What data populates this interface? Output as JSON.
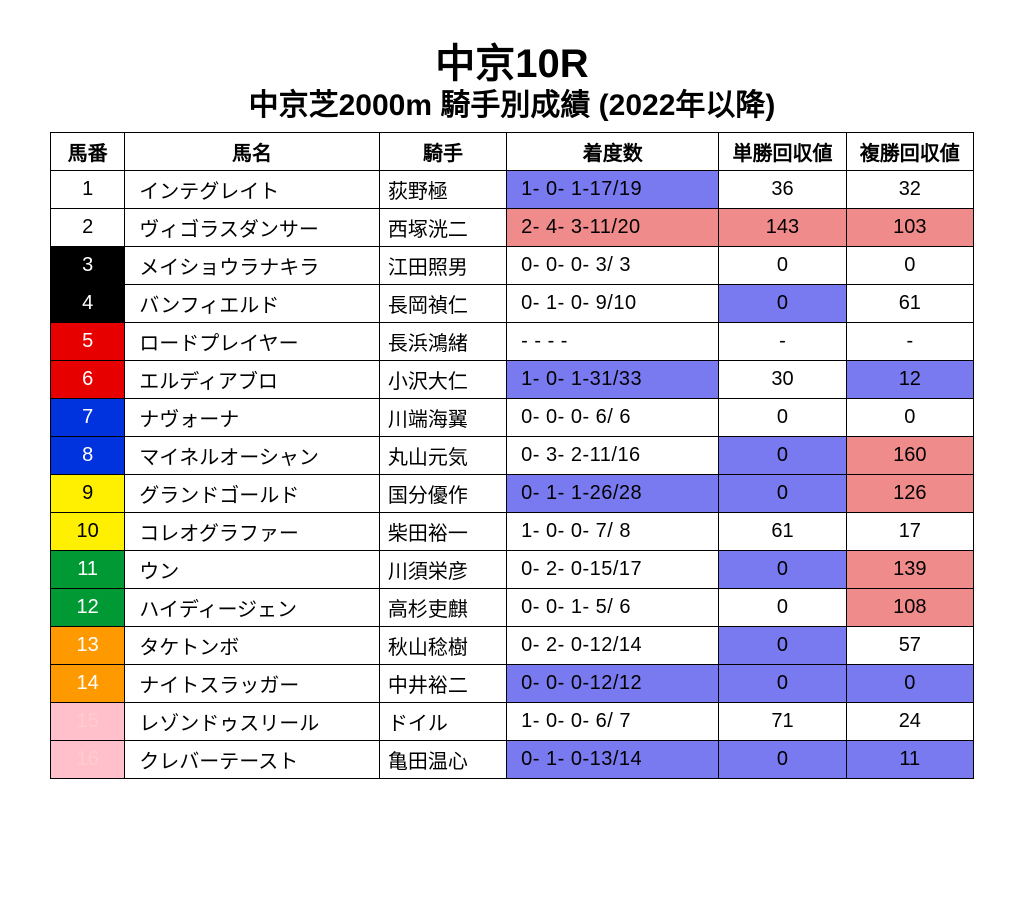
{
  "title_main": "中京10R",
  "title_sub": "中京芝2000m 騎手別成績 (2022年以降)",
  "columns": [
    "馬番",
    "馬名",
    "騎手",
    "着度数",
    "単勝回収値",
    "複勝回収値"
  ],
  "palette": {
    "white": {
      "bg": "#ffffff",
      "fg": "#000000"
    },
    "black": {
      "bg": "#000000",
      "fg": "#ffffff"
    },
    "red": {
      "bg": "#e60000",
      "fg": "#ffffff"
    },
    "blue": {
      "bg": "#0033dd",
      "fg": "#ffffff"
    },
    "yellow": {
      "bg": "#ffef00",
      "fg": "#000000"
    },
    "green": {
      "bg": "#009933",
      "fg": "#ffffff"
    },
    "orange": {
      "bg": "#ff9900",
      "fg": "#ffffff"
    },
    "pink": {
      "bg": "#ffc0cb",
      "fg": "#ffcccc"
    },
    "hl_blue": {
      "bg": "#7a7af0",
      "fg": "#000000"
    },
    "hl_red": {
      "bg": "#f08b8b",
      "fg": "#000000"
    }
  },
  "rows": [
    {
      "num": "1",
      "num_color": "white",
      "horse": "インテグレイト",
      "jockey": "荻野極",
      "record": "1- 0- 1-17/19",
      "record_hl": "hl_blue",
      "win": "36",
      "win_hl": null,
      "place": "32",
      "place_hl": null
    },
    {
      "num": "2",
      "num_color": "white",
      "horse": "ヴィゴラスダンサー",
      "jockey": "西塚洸二",
      "record": "2- 4- 3-11/20",
      "record_hl": "hl_red",
      "win": "143",
      "win_hl": "hl_red",
      "place": "103",
      "place_hl": "hl_red"
    },
    {
      "num": "3",
      "num_color": "black",
      "horse": "メイショウラナキラ",
      "jockey": "江田照男",
      "record": "0- 0- 0- 3/ 3",
      "record_hl": null,
      "win": "0",
      "win_hl": null,
      "place": "0",
      "place_hl": null
    },
    {
      "num": "4",
      "num_color": "black",
      "horse": "バンフィエルド",
      "jockey": "長岡禎仁",
      "record": "0- 1- 0- 9/10",
      "record_hl": null,
      "win": "0",
      "win_hl": "hl_blue",
      "place": "61",
      "place_hl": null
    },
    {
      "num": "5",
      "num_color": "red",
      "horse": "ロードプレイヤー",
      "jockey": "長浜鴻緒",
      "record": " -  -  -  - ",
      "record_hl": null,
      "win": "-",
      "win_hl": null,
      "place": "-",
      "place_hl": null
    },
    {
      "num": "6",
      "num_color": "red",
      "horse": "エルディアブロ",
      "jockey": "小沢大仁",
      "record": "1- 0- 1-31/33",
      "record_hl": "hl_blue",
      "win": "30",
      "win_hl": null,
      "place": "12",
      "place_hl": "hl_blue"
    },
    {
      "num": "7",
      "num_color": "blue",
      "horse": "ナヴォーナ",
      "jockey": "川端海翼",
      "record": "0- 0- 0- 6/ 6",
      "record_hl": null,
      "win": "0",
      "win_hl": null,
      "place": "0",
      "place_hl": null
    },
    {
      "num": "8",
      "num_color": "blue",
      "horse": "マイネルオーシャン",
      "jockey": "丸山元気",
      "record": "0- 3- 2-11/16",
      "record_hl": null,
      "win": "0",
      "win_hl": "hl_blue",
      "place": "160",
      "place_hl": "hl_red"
    },
    {
      "num": "9",
      "num_color": "yellow",
      "horse": "グランドゴールド",
      "jockey": "国分優作",
      "record": "0- 1- 1-26/28",
      "record_hl": "hl_blue",
      "win": "0",
      "win_hl": "hl_blue",
      "place": "126",
      "place_hl": "hl_red"
    },
    {
      "num": "10",
      "num_color": "yellow",
      "horse": "コレオグラファー",
      "jockey": "柴田裕一",
      "record": "1- 0- 0- 7/ 8",
      "record_hl": null,
      "win": "61",
      "win_hl": null,
      "place": "17",
      "place_hl": null
    },
    {
      "num": "11",
      "num_color": "green",
      "horse": "ウン",
      "jockey": "川須栄彦",
      "record": "0- 2- 0-15/17",
      "record_hl": null,
      "win": "0",
      "win_hl": "hl_blue",
      "place": "139",
      "place_hl": "hl_red"
    },
    {
      "num": "12",
      "num_color": "green",
      "horse": "ハイディージェン",
      "jockey": "高杉吏麒",
      "record": "0- 0- 1- 5/ 6",
      "record_hl": null,
      "win": "0",
      "win_hl": null,
      "place": "108",
      "place_hl": "hl_red"
    },
    {
      "num": "13",
      "num_color": "orange",
      "horse": "タケトンボ",
      "jockey": "秋山稔樹",
      "record": "0- 2- 0-12/14",
      "record_hl": null,
      "win": "0",
      "win_hl": "hl_blue",
      "place": "57",
      "place_hl": null
    },
    {
      "num": "14",
      "num_color": "orange",
      "horse": "ナイトスラッガー",
      "jockey": "中井裕二",
      "record": "0- 0- 0-12/12",
      "record_hl": "hl_blue",
      "win": "0",
      "win_hl": "hl_blue",
      "place": "0",
      "place_hl": "hl_blue"
    },
    {
      "num": "15",
      "num_color": "pink",
      "horse": "レゾンドゥスリール",
      "jockey": "ドイル",
      "record": "1- 0- 0- 6/ 7",
      "record_hl": null,
      "win": "71",
      "win_hl": null,
      "place": "24",
      "place_hl": null
    },
    {
      "num": "16",
      "num_color": "pink",
      "horse": "クレバーテースト",
      "jockey": "亀田温心",
      "record": "0- 1- 0-13/14",
      "record_hl": "hl_blue",
      "win": "0",
      "win_hl": "hl_blue",
      "place": "11",
      "place_hl": "hl_blue"
    }
  ]
}
